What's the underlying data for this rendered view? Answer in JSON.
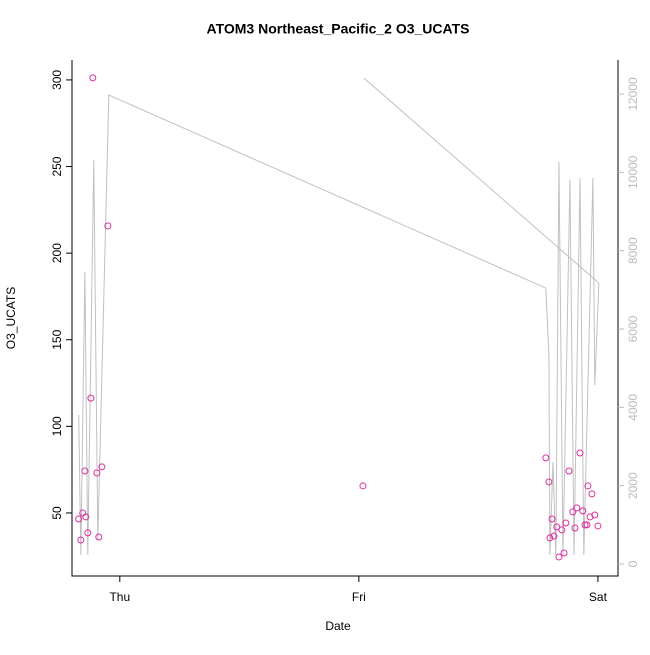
{
  "chart_data": {
    "type": "scatter",
    "title": "ATOM3 Northeast_Pacific_2 O3_UCATS",
    "xlabel": "Date",
    "ylabel": "O3_UCATS",
    "xlim": [
      -0.2,
      2.084
    ],
    "xticks": [
      {
        "value": 0,
        "label": "Thu"
      },
      {
        "value": 1,
        "label": "Fri"
      },
      {
        "value": 2,
        "label": "Sat"
      }
    ],
    "ylim": [
      13.6,
      311.5
    ],
    "yticks": [
      50,
      100,
      150,
      200,
      250,
      300
    ],
    "y2lim": [
      -306,
      12868
    ],
    "y2ticks": [
      0,
      2000,
      4000,
      6000,
      8000,
      10000,
      12000
    ],
    "series": [
      {
        "color": "#dd2fa0",
        "x": [
          -0.172,
          -0.163,
          -0.155,
          -0.146,
          -0.142,
          -0.134,
          -0.121,
          -0.113,
          -0.096,
          -0.088,
          -0.075,
          -0.05,
          1.017,
          1.782,
          1.795,
          1.799,
          1.808,
          1.816,
          1.828,
          1.837,
          1.849,
          1.858,
          1.866,
          1.879,
          1.895,
          1.904,
          1.912,
          1.925,
          1.937,
          1.946,
          1.954,
          1.958,
          1.967,
          1.975,
          1.987,
          2.0
        ],
        "values": [
          46.5,
          34.4,
          50,
          74.2,
          47.7,
          38.5,
          116.3,
          301.2,
          73.1,
          36.1,
          76.6,
          215.7,
          65.6,
          81.8,
          67.9,
          35.6,
          46.5,
          36.7,
          41.9,
          24.6,
          40.2,
          26.9,
          44.2,
          74.2,
          50.6,
          41.3,
          52.9,
          84.6,
          51.2,
          43.1,
          43.1,
          65.6,
          47.7,
          61,
          48.8,
          42.5
        ]
      },
      {
        "color": "#c0c0c0",
        "axis": "y2",
        "x": [
          -0.172,
          -0.163,
          -0.146,
          -0.134,
          -0.109,
          -0.092,
          -0.046,
          1.782,
          1.795,
          1.799,
          1.812,
          1.824,
          1.837,
          1.854,
          1.883,
          1.9,
          1.925,
          1.941,
          1.979,
          1.987,
          2.004,
          null,
          1.021,
          2.004
        ],
        "values": [
          3804,
          230,
          7455,
          230,
          10314,
          613,
          11974,
          7046,
          5336,
          230,
          2604,
          230,
          10263,
          230,
          9803,
          230,
          9854,
          230,
          9854,
          4570,
          7174,
          null,
          12408,
          7174
        ]
      }
    ]
  }
}
